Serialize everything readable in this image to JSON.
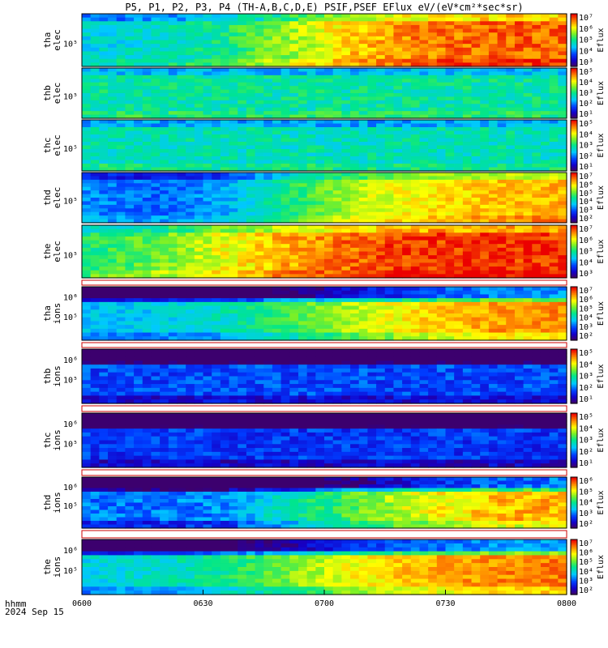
{
  "chart_data": {
    "type": "heatmap",
    "title": "P5, P1, P2, P3, P4 (TH-A,B,C,D,E) PSIF,PSEF EFlux eV/(eV*cm²*sec*sr)",
    "x_ticks": [
      "0600",
      "0630",
      "0700",
      "0730",
      "0800"
    ],
    "x_range": [
      "06:00",
      "08:00"
    ],
    "footer": {
      "line1": "hhmm",
      "line2": "2024 Sep 15"
    },
    "colorbar_label": "Eflux",
    "panels": [
      {
        "id": "tha-elec",
        "label1": "tha",
        "label2": "elec",
        "y_tick": "10⁵",
        "cb_min": 3,
        "cb_max": 7,
        "trend": [
          4.6,
          4.7,
          5.0,
          5.6,
          6.2,
          6.5,
          6.6,
          6.6
        ],
        "cb_labels": [
          "10⁷",
          "10⁶",
          "10⁵",
          "10⁴",
          "10³"
        ]
      },
      {
        "id": "thb-elec",
        "label1": "thb",
        "label2": "elec",
        "y_tick": "10⁵",
        "cb_min": 1,
        "cb_max": 5,
        "trend": [
          2.9,
          2.9,
          2.9,
          2.9,
          2.9,
          2.9,
          2.9,
          2.9
        ],
        "cb_labels": [
          "10⁵",
          "10⁴",
          "10³",
          "10²",
          "10¹"
        ]
      },
      {
        "id": "thc-elec",
        "label1": "thc",
        "label2": "elec",
        "y_tick": "10⁵",
        "cb_min": 1,
        "cb_max": 5,
        "trend": [
          2.8,
          2.8,
          2.8,
          2.8,
          2.8,
          2.8,
          2.8,
          2.8
        ],
        "cb_labels": [
          "10⁵",
          "10⁴",
          "10³",
          "10²",
          "10¹"
        ]
      },
      {
        "id": "thd-elec",
        "label1": "thd",
        "label2": "elec",
        "y_tick": "10⁵",
        "cb_min": 2,
        "cb_max": 7,
        "trend": [
          3.5,
          3.3,
          3.6,
          4.6,
          5.4,
          5.8,
          6.0,
          6.1
        ],
        "cb_labels": [
          "10⁷",
          "10⁶",
          "10⁵",
          "10⁴",
          "10³",
          "10²"
        ]
      },
      {
        "id": "the-elec",
        "label1": "the",
        "label2": "elec",
        "y_tick": "10⁵",
        "cb_min": 3,
        "cb_max": 7,
        "trend": [
          5.1,
          5.4,
          5.9,
          6.3,
          6.6,
          6.8,
          6.8,
          6.8
        ],
        "cb_labels": [
          "10⁷",
          "10⁶",
          "10⁵",
          "10⁴",
          "10³"
        ]
      },
      {
        "id": "tha-ions",
        "label1": "tha",
        "label2": "ions",
        "y_tick": "10⁵",
        "y_tick2": "10⁶",
        "cb_min": 2,
        "cb_max": 7,
        "trend": [
          3.8,
          3.9,
          4.2,
          4.8,
          5.4,
          5.9,
          6.2,
          6.3
        ],
        "cb_labels": [
          "10⁷",
          "10⁶",
          "10⁵",
          "10⁴",
          "10³",
          "10²"
        ]
      },
      {
        "id": "thb-ions",
        "label1": "thb",
        "label2": "ions",
        "y_tick": "10⁵",
        "y_tick2": "10⁶",
        "cb_min": 1,
        "cb_max": 5,
        "trend": [
          1.9,
          1.9,
          1.9,
          1.9,
          1.9,
          1.9,
          1.9,
          1.9
        ],
        "cb_labels": [
          "10⁵",
          "10⁴",
          "10³",
          "10²",
          "10¹"
        ]
      },
      {
        "id": "thc-ions",
        "label1": "thc",
        "label2": "ions",
        "y_tick": "10⁵",
        "y_tick2": "10⁶",
        "cb_min": 1,
        "cb_max": 5,
        "trend": [
          1.8,
          1.8,
          1.8,
          1.8,
          1.8,
          1.8,
          1.8,
          1.8
        ],
        "cb_labels": [
          "10⁵",
          "10⁴",
          "10³",
          "10²",
          "10¹"
        ]
      },
      {
        "id": "thd-ions",
        "label1": "thd",
        "label2": "ions",
        "y_tick": "10⁵",
        "y_tick2": "10⁶",
        "cb_min": 2,
        "cb_max": 6,
        "trend": [
          3.1,
          3.1,
          3.2,
          3.8,
          4.4,
          4.9,
          5.2,
          5.3
        ],
        "cb_labels": [
          "10⁶",
          "10⁵",
          "10⁴",
          "10³",
          "10²"
        ]
      },
      {
        "id": "the-ions",
        "label1": "the",
        "label2": "ions",
        "y_tick": "10⁵",
        "y_tick2": "10⁶",
        "cb_min": 2,
        "cb_max": 7,
        "trend": [
          4.0,
          4.1,
          4.5,
          5.1,
          5.7,
          6.1,
          6.3,
          6.4
        ],
        "cb_labels": [
          "10⁷",
          "10⁶",
          "10⁵",
          "10⁴",
          "10³",
          "10²"
        ]
      }
    ]
  }
}
